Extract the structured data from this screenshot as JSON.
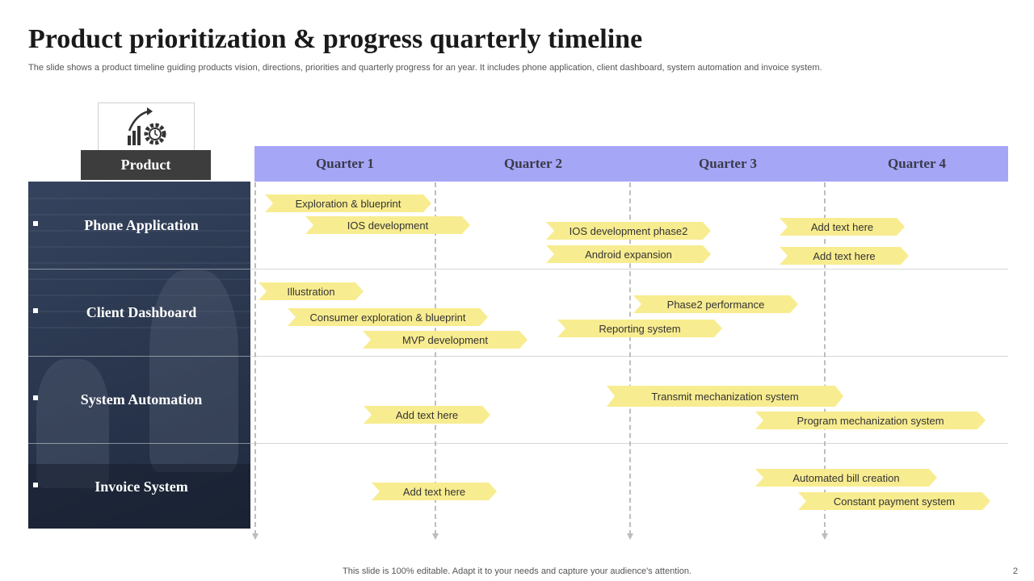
{
  "title": "Product prioritization & progress quarterly timeline",
  "subtitle": "The slide shows a product timeline guiding products vision, directions, priorities and quarterly progress for an year.  It includes phone application, client dashboard, system automation and invoice system.",
  "product_header": "Product",
  "product_icon": "gear-growth-icon",
  "quarters": [
    "Quarter 1",
    "Quarter 2",
    "Quarter 3",
    "Quarter 4"
  ],
  "rows": [
    {
      "label": "Phone Application"
    },
    {
      "label": "Client Dashboard"
    },
    {
      "label": "System Automation"
    },
    {
      "label": "Invoice System"
    }
  ],
  "tasks": [
    "Exploration & blueprint",
    "IOS development",
    "IOS development  phase2",
    "Android expansion",
    "Add text here",
    "Add text here",
    "Illustration",
    "Consumer  exploration & blueprint",
    "MVP development",
    "Phase2 performance",
    "Reporting system",
    "Transmit  mechanization system",
    "Add text here",
    "Program  mechanization system",
    "Add text here",
    "Automated bill creation",
    "Constant payment system"
  ],
  "colors": {
    "quarter_bar": "#a6a6f7",
    "tag": "#f8ec90",
    "product_header": "#3d3d3d",
    "left_panel": "#2b3850"
  },
  "footer": "This slide is 100% editable. Adapt it to your needs and capture your audience's attention.",
  "page_number": "2"
}
